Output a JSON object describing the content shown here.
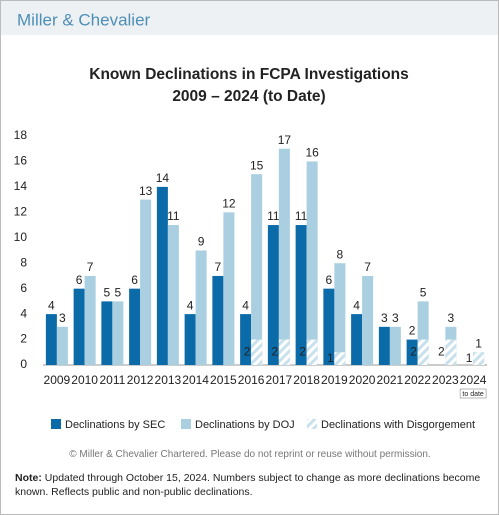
{
  "brand": "Miller & Chevalier",
  "chart_data": {
    "type": "bar",
    "title": "Known Declinations in FCPA Investigations",
    "subtitle": "2009 – 2024 (to Date)",
    "categories": [
      "2009",
      "2010",
      "2011",
      "2012",
      "2013",
      "2014",
      "2015",
      "2016",
      "2017",
      "2018",
      "2019",
      "2020",
      "2021",
      "2022",
      "2023",
      "2024"
    ],
    "series": [
      {
        "name": "Declinations by SEC",
        "color": "#0b6aa8",
        "values": [
          4,
          6,
          5,
          6,
          14,
          4,
          7,
          4,
          11,
          11,
          6,
          4,
          3,
          2,
          null,
          null
        ]
      },
      {
        "name": "Declinations by DOJ",
        "color": "#a9cfe0",
        "values": [
          3,
          7,
          5,
          13,
          11,
          9,
          12,
          15,
          17,
          16,
          8,
          7,
          3,
          5,
          3,
          1
        ]
      },
      {
        "name": "Declinations with Disgorgement",
        "color": "#c9e1ec",
        "hatch": true,
        "values": [
          null,
          null,
          null,
          null,
          null,
          null,
          null,
          2,
          2,
          2,
          1,
          null,
          null,
          2,
          2,
          1
        ]
      }
    ],
    "ylim": [
      0,
      18
    ],
    "yticks": [
      0,
      2,
      4,
      6,
      8,
      10,
      12,
      14,
      16,
      18
    ],
    "annotation": "to date"
  },
  "copyright": "© Miller & Chevalier Chartered. Please do not reprint or reuse without permission.",
  "note_label": "Note:",
  "note": "Updated through October 15, 2024. Numbers subject to change as more declinations become known. Reflects public and non-public declinations."
}
